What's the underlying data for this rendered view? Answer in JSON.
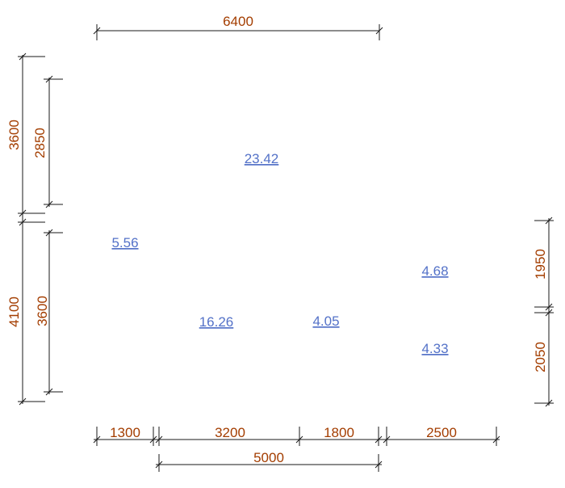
{
  "dimensions": {
    "top_total": "6400",
    "left_outer_upper": "3600",
    "left_inner_upper": "2850",
    "left_outer_lower": "4100",
    "left_inner_lower": "3600",
    "right_upper": "1950",
    "right_lower": "2050",
    "bottom_1": "1300",
    "bottom_2": "3200",
    "bottom_3": "1800",
    "bottom_4": "2500",
    "bottom_total": "5000"
  },
  "rooms": {
    "room_large": "23.42",
    "room_left": "5.56",
    "room_center": "16.26",
    "room_small": "4.05",
    "room_right_upper": "4.68",
    "room_right_lower": "4.33"
  },
  "colors": {
    "dimension_text": "#a33d00",
    "area_text": "#5472c8",
    "line": "#1a1a1a"
  }
}
